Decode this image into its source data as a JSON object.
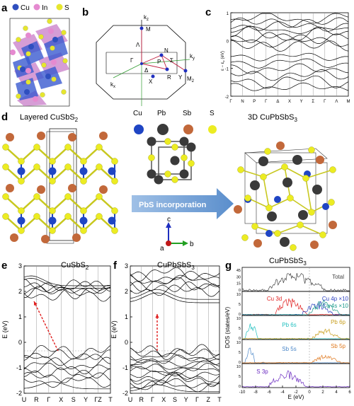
{
  "panels": {
    "a": {
      "label": "a",
      "legend": [
        {
          "name": "Cu",
          "color": "#2f4fbf"
        },
        {
          "name": "In",
          "color": "#e58ad0"
        },
        {
          "name": "S",
          "color": "#e6e62e"
        }
      ]
    },
    "b": {
      "label": "b",
      "points": [
        "k_z",
        "M",
        "N",
        "Γ",
        "P",
        "Σ",
        "Λ",
        "Δ",
        "X",
        "R",
        "Y",
        "M_2",
        "k_x",
        "k_y"
      ],
      "point_labels": {
        "kz": "k",
        "kz_sub": "z",
        "kx": "k",
        "kx_sub": "x",
        "ky": "k",
        "ky_sub": "y",
        "M2": "M",
        "M2_sub": "2"
      }
    },
    "c": {
      "label": "c",
      "ylabel": "ε − ε",
      "ylabel_sub": "F",
      "ylabel_unit": "(eV)",
      "yticks": [
        "1",
        "0",
        "-1",
        "-2"
      ],
      "xticks": [
        "Γ",
        "N",
        "P",
        "Γ",
        "Δ",
        "X",
        "Y",
        "Σ",
        "Γ",
        "Λ",
        "M"
      ]
    },
    "d": {
      "label": "d",
      "left_title": "Layered CuSbS",
      "left_title_sub": "2",
      "right_title": "3D CuPbSbS",
      "right_title_sub": "3",
      "legend": [
        {
          "name": "Cu",
          "color": "#1f45c4"
        },
        {
          "name": "Pb",
          "color": "#3a3a3a"
        },
        {
          "name": "Sb",
          "color": "#c2683a"
        },
        {
          "name": "S",
          "color": "#ecec22"
        }
      ],
      "arrow_text": "PbS incorporation",
      "axes": {
        "c": "c",
        "a": "a",
        "b": "b"
      }
    },
    "e": {
      "label": "e",
      "title": "CuSbS",
      "title_sub": "2",
      "ylabel": "E (eV)",
      "yticks": [
        "3",
        "2",
        "1",
        "0",
        "-1",
        "-2"
      ],
      "xticks": [
        "U",
        "R",
        "Γ",
        "X",
        "S",
        "Y",
        "ΓZ",
        "T"
      ]
    },
    "f": {
      "label": "f",
      "title": "CuPbSbS",
      "title_sub": "3",
      "ylabel": "E (eV)",
      "yticks": [
        "3",
        "2",
        "1",
        "0",
        "-1",
        "-2"
      ],
      "xticks": [
        "U",
        "R",
        "Γ",
        "X",
        "S",
        "Y",
        "Γ",
        "Z",
        "T"
      ]
    },
    "g": {
      "label": "g",
      "title": "CuPbSbS",
      "title_sub": "3",
      "ylabel": "DOS (states/eV)",
      "xlabel": "E (eV)",
      "xticks": [
        "-10",
        "-8",
        "-6",
        "-4",
        "-2",
        "0",
        "2",
        "4",
        "6"
      ],
      "subpanels": [
        {
          "labels": [
            "Total"
          ],
          "yticks": [
            "45",
            "30",
            "15",
            "0"
          ]
        },
        {
          "labels": [
            "Cu 3d",
            "Cu 4p ×10",
            "Cu 4s ×10"
          ],
          "yticks": [
            "10",
            "5",
            "0"
          ]
        },
        {
          "labels": [
            "Pb 6s",
            "Pb 6p"
          ],
          "yticks": [
            "10",
            "5",
            "0"
          ]
        },
        {
          "labels": [
            "Sb 5s",
            "Sb 5p"
          ],
          "yticks": [
            "10",
            "5",
            "0"
          ]
        },
        {
          "labels": [
            "S 3p"
          ],
          "yticks": [
            "10",
            "5",
            "0"
          ]
        }
      ],
      "colors": {
        "total": "#444444",
        "cu3d": "#e02020",
        "cu4p": "#2a3fbf",
        "cu4s": "#1b9a8a",
        "pb6s": "#1fbfbf",
        "pb6p": "#c9a020",
        "sb5s": "#4a86c8",
        "sb5p": "#e07a20",
        "s3p": "#6a2ac0"
      }
    }
  }
}
